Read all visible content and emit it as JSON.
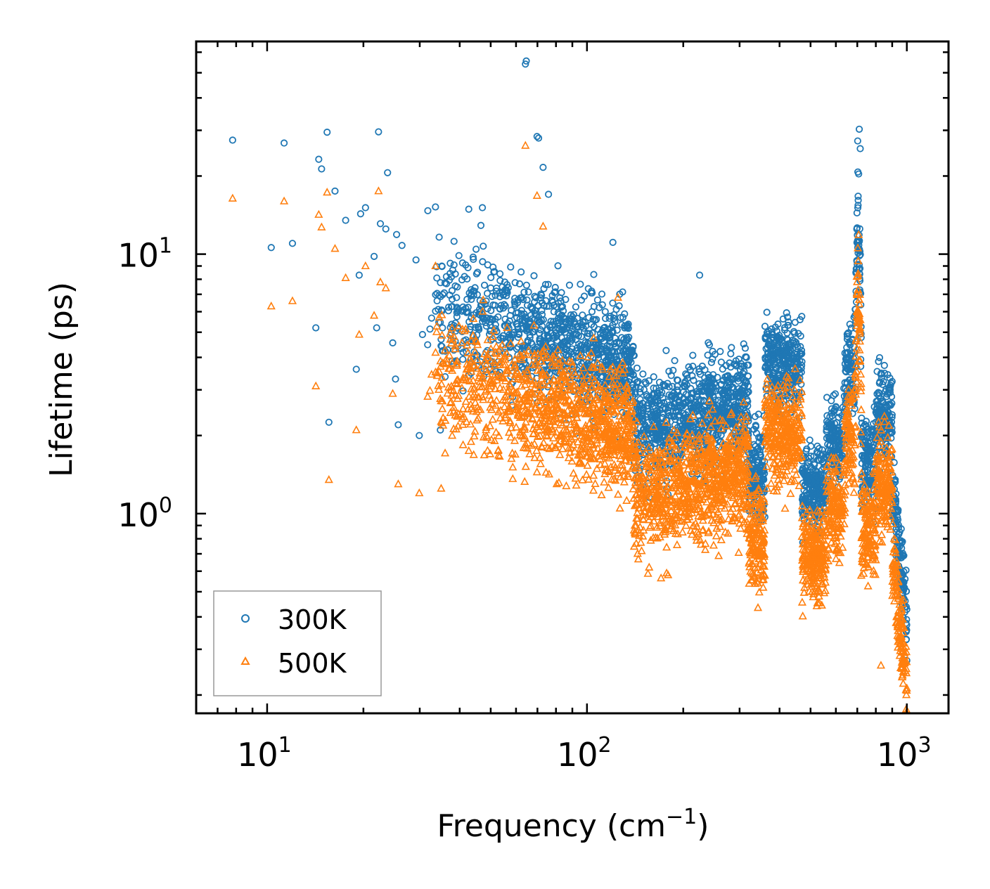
{
  "chart_data": {
    "type": "scatter",
    "xscale": "log",
    "yscale": "log",
    "xlabel": "Frequency (cm",
    "xlabel_sup": "−1",
    "xlabel_suffix": ")",
    "ylabel": "Lifetime (ps)",
    "xlim": [
      6.0,
      1350
    ],
    "ylim": [
      0.17,
      66
    ],
    "x_major_ticks": [
      {
        "value": 10,
        "base": "10",
        "exp": "1"
      },
      {
        "value": 100,
        "base": "10",
        "exp": "2"
      },
      {
        "value": 1000,
        "base": "10",
        "exp": "3"
      }
    ],
    "y_major_ticks": [
      {
        "value": 1,
        "base": "10",
        "exp": "0"
      },
      {
        "value": 10,
        "base": "10",
        "exp": "1"
      }
    ],
    "legend_position": "lower-left",
    "series": [
      {
        "name": "300K",
        "marker": "circle",
        "color": "#1f77b4",
        "explicit_points": [
          [
            7.8,
            27.5
          ],
          [
            10.3,
            10.6
          ],
          [
            11.3,
            26.8
          ],
          [
            12.0,
            11.0
          ],
          [
            14.2,
            5.2
          ],
          [
            14.5,
            23.2
          ],
          [
            14.8,
            21.3
          ],
          [
            15.4,
            29.5
          ],
          [
            15.6,
            2.25
          ],
          [
            16.3,
            17.5
          ],
          [
            17.6,
            13.5
          ],
          [
            19.0,
            3.6
          ],
          [
            19.4,
            8.3
          ],
          [
            19.6,
            14.3
          ],
          [
            20.3,
            15.1
          ],
          [
            21.6,
            9.8
          ],
          [
            22.0,
            5.2
          ],
          [
            22.3,
            29.6
          ],
          [
            22.6,
            13.1
          ],
          [
            23.5,
            12.5
          ],
          [
            23.8,
            20.6
          ],
          [
            24.7,
            4.55
          ],
          [
            25.2,
            3.3
          ],
          [
            25.4,
            11.9
          ],
          [
            25.7,
            2.2
          ],
          [
            26.4,
            10.8
          ],
          [
            29.2,
            9.5
          ],
          [
            29.9,
            2.0
          ],
          [
            30.6,
            4.9
          ],
          [
            31.8,
            14.7
          ],
          [
            33.6,
            15.2
          ],
          [
            34.8,
            2.1
          ],
          [
            38.4,
            11.2
          ],
          [
            39.1,
            6.8
          ],
          [
            42.7,
            14.9
          ],
          [
            46.6,
            12.9
          ],
          [
            47.1,
            15.1
          ],
          [
            64.2,
            54.0
          ],
          [
            64.6,
            55.5
          ],
          [
            69.8,
            28.4
          ],
          [
            70.6,
            28.0
          ],
          [
            72.9,
            21.6
          ],
          [
            75.8,
            17.0
          ],
          [
            120.5,
            11.1
          ],
          [
            225.0,
            8.3
          ],
          [
            710.0,
            30.3
          ],
          [
            702.0,
            27.3
          ],
          [
            715.0,
            25.5
          ]
        ]
      },
      {
        "name": "500K",
        "marker": "triangle",
        "color": "#ff7f0e",
        "explicit_points": [
          [
            7.8,
            16.4
          ],
          [
            10.3,
            6.3
          ],
          [
            11.3,
            16.0
          ],
          [
            12.0,
            6.6
          ],
          [
            14.2,
            3.1
          ],
          [
            14.5,
            14.2
          ],
          [
            14.8,
            12.7
          ],
          [
            15.4,
            17.3
          ],
          [
            15.6,
            1.35
          ],
          [
            16.3,
            10.5
          ],
          [
            17.6,
            8.1
          ],
          [
            19.0,
            2.1
          ],
          [
            19.4,
            4.9
          ],
          [
            20.3,
            9.0
          ],
          [
            21.6,
            5.8
          ],
          [
            22.3,
            17.5
          ],
          [
            22.6,
            7.8
          ],
          [
            23.5,
            7.4
          ],
          [
            24.7,
            2.9
          ],
          [
            25.7,
            1.3
          ],
          [
            29.9,
            1.2
          ],
          [
            33.6,
            9.0
          ],
          [
            35.0,
            1.25
          ],
          [
            64.2,
            26.2
          ],
          [
            69.8,
            16.8
          ],
          [
            72.9,
            12.8
          ],
          [
            125.0,
            6.8
          ],
          [
            830.0,
            0.26
          ]
        ]
      }
    ],
    "description_regions": "dense clouds of points between ~35 and ~1000 cm^-1"
  }
}
